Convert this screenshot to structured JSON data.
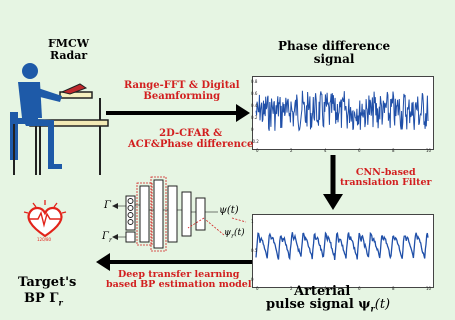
{
  "radar_label": "FMCW\nRadar",
  "phase_title": "Phase difference\nsignal",
  "step1": "Range-FFT & Digital\nBeamforming",
  "step2": "2D-CFAR &\nACF&Phase difference",
  "cnn_label": "CNN-based\ntranslation Filter",
  "model_label": "Deep transfer learning\nbased BP estimation model",
  "arterial_label": "Arterial",
  "pulse_label": "pulse signal ψ",
  "pulse_sub": "r",
  "pulse_arg": "(t)",
  "target_label": "Target's",
  "bp_label": "BP Γ",
  "bp_sub": "r",
  "heart_reading": "120/80",
  "net_gamma": "Γ",
  "net_gamma_r": "Γ",
  "net_psi": "ψ(t)",
  "net_psi_r": "ψ",
  "phase_xticks": [
    "0",
    "2",
    "4",
    "6",
    "8",
    "10"
  ],
  "phase_yticks": [
    "0.8",
    "0.6",
    "0.4",
    "0.2",
    "0",
    "-0.2"
  ],
  "pulse_xticks": [
    "0",
    "2",
    "4",
    "6",
    "8",
    "10"
  ],
  "pulse_yticks": [
    "1",
    "0.5",
    "0"
  ],
  "colors": {
    "background": "#e6f5e3",
    "signal": "#1f4fa8",
    "annotation": "#d21f1f",
    "heart": "#e2231a"
  }
}
